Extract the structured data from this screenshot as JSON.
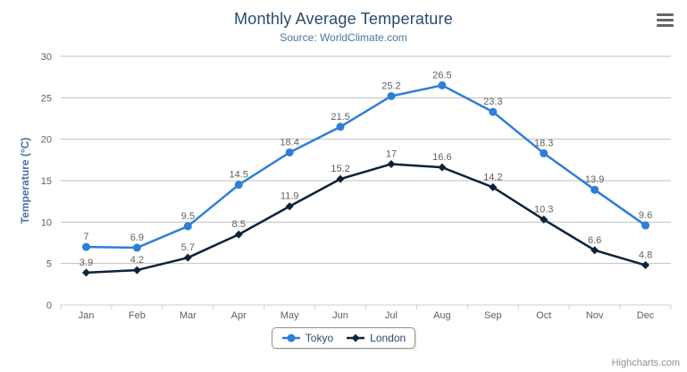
{
  "chart": {
    "credits": "Highcharts.com"
  },
  "export_menu": {
    "icon": "hamburger-menu-icon"
  },
  "chart_data": {
    "type": "line",
    "title": "Monthly Average Temperature",
    "subtitle": "Source: WorldClimate.com",
    "categories": [
      "Jan",
      "Feb",
      "Mar",
      "Apr",
      "May",
      "Jun",
      "Jul",
      "Aug",
      "Sep",
      "Oct",
      "Nov",
      "Dec"
    ],
    "series": [
      {
        "name": "Tokyo",
        "color": "#2f7ed8",
        "marker": "circle",
        "values": [
          7,
          6.9,
          9.5,
          14.5,
          18.4,
          21.5,
          25.2,
          26.5,
          23.3,
          18.3,
          13.9,
          9.6
        ]
      },
      {
        "name": "London",
        "color": "#0d233a",
        "marker": "diamond",
        "values": [
          3.9,
          4.2,
          5.7,
          8.5,
          11.9,
          15.2,
          17,
          16.6,
          14.2,
          10.3,
          6.6,
          4.8
        ]
      }
    ],
    "xlabel": "",
    "ylabel": "Temperature (°C)",
    "ylim": [
      0,
      30
    ],
    "ytick_step": 5,
    "grid": true,
    "legend_position": "bottom-center",
    "data_labels_visible": true,
    "colors": {
      "title": "#274b6d",
      "subtitle": "#4d759e",
      "y_axis_title": "#4572a7",
      "axis_labels": "#606060",
      "grid_line": "#c0c0c0",
      "axis_line": "#c0d0e0",
      "data_label": "#606060",
      "legend_text": "#274b6d",
      "legend_border": "#909090",
      "credits": "#909090",
      "background": "#ffffff"
    }
  }
}
